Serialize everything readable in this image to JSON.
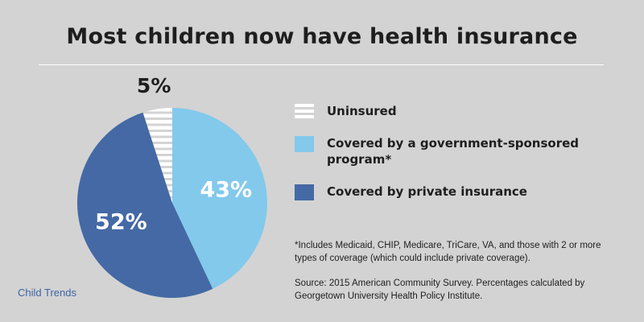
{
  "title": "Most children now have health insurance",
  "chart_data": {
    "type": "pie",
    "title": "Most children now have health insurance",
    "slices": [
      {
        "label": "Covered by a government-sponsored program*",
        "value": 43,
        "display": "43%",
        "color": "#82c9ec",
        "label_color": "#ffffff",
        "pattern": "solid"
      },
      {
        "label": "Covered by private insurance",
        "value": 52,
        "display": "52%",
        "color": "#4469a5",
        "label_color": "#ffffff",
        "pattern": "solid"
      },
      {
        "label": "Uninsured",
        "value": 5,
        "display": "5%",
        "color": "#ffffff",
        "label_color": "#1e1e1e",
        "pattern": "horizontal-stripes"
      }
    ],
    "legend_position": "right"
  },
  "legend": [
    {
      "label": "Uninsured",
      "swatch": "uninsured"
    },
    {
      "label": "Covered by a government-sponsored program*",
      "swatch": "gov"
    },
    {
      "label": "Covered by private insurance",
      "swatch": "private"
    }
  ],
  "footnote": "*Includes Medicaid, CHIP, Medicare, TriCare, VA, and those with 2 or more types of coverage (which could include private coverage).",
  "source": "Source: 2015 American Community Survey. Percentages calculated by Georgetown University Health Policy Institute.",
  "brand": "Child Trends",
  "colors": {
    "background": "#d3d3d3",
    "uninsured_stripe_gap": "#d3d3d3"
  }
}
